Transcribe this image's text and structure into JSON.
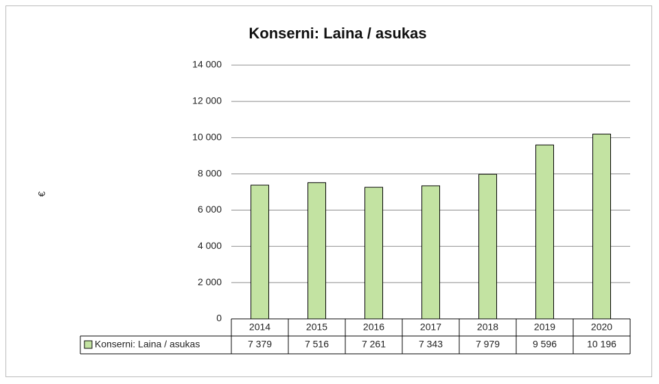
{
  "chart_data": {
    "type": "bar",
    "title": "Konserni: Laina / asukas",
    "y_label": "€",
    "categories": [
      "2014",
      "2015",
      "2016",
      "2017",
      "2018",
      "2019",
      "2020"
    ],
    "series": [
      {
        "name": "Konserni: Laina / asukas",
        "color": "#c3e3a2",
        "values": [
          7379,
          7516,
          7261,
          7343,
          7979,
          9596,
          10196
        ],
        "value_labels": [
          "7 379",
          "7 516",
          "7 261",
          "7 343",
          "7 979",
          "9 596",
          "10 196"
        ]
      }
    ],
    "ylim": [
      0,
      14000
    ],
    "yticks": [
      0,
      {
        "value": 2000,
        "label": "2 000"
      },
      {
        "value": 4000,
        "label": "4 000"
      },
      {
        "value": 6000,
        "label": "6 000"
      },
      {
        "value": 8000,
        "label": "8 000"
      },
      {
        "value": 10000,
        "label": "10 000"
      },
      {
        "value": 12000,
        "label": "12 000"
      },
      {
        "value": 14000,
        "label": "14 000"
      }
    ],
    "grid": true,
    "data_table": true
  }
}
